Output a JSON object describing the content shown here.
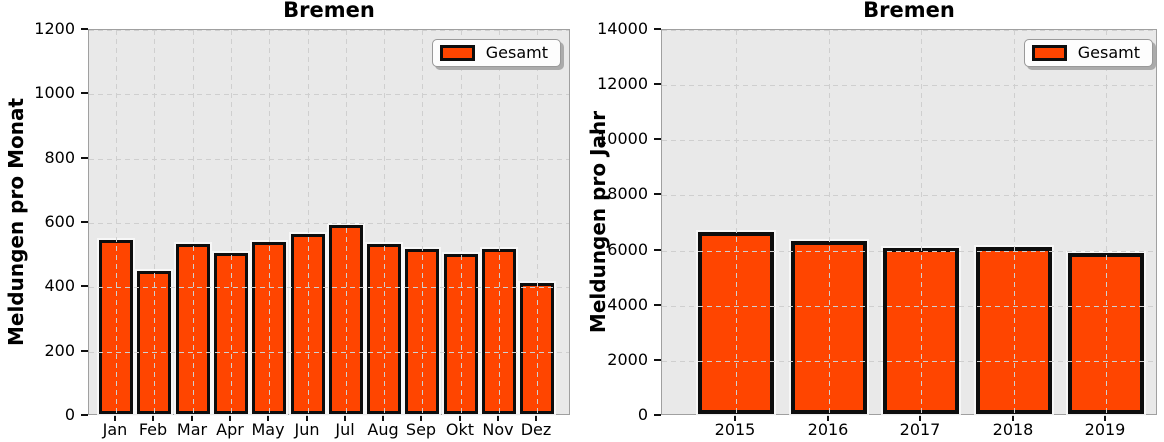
{
  "colors": {
    "bar_fill": "#FF4500",
    "bar_edge": "#0d0d0d",
    "plot_background": "#e9e9e9",
    "gridline": "#cfcfcf",
    "figure_background": "#ffffff"
  },
  "chart_data": [
    {
      "type": "bar",
      "title": "Bremen",
      "xlabel": "",
      "ylabel": "Meldungen pro Monat",
      "categories": [
        "Jan",
        "Feb",
        "Mar",
        "Apr",
        "May",
        "Jun",
        "Jul",
        "Aug",
        "Sep",
        "Okt",
        "Nov",
        "Dez"
      ],
      "values": [
        540,
        446,
        527,
        500,
        535,
        561,
        589,
        527,
        514,
        498,
        512,
        408
      ],
      "ylim": [
        0,
        1200
      ],
      "yticks": [
        0,
        200,
        400,
        600,
        800,
        1000,
        1200
      ],
      "grid": "dashed, both axes, drawn above bars",
      "legend": {
        "entries": [
          "Gesamt"
        ],
        "position": "upper right"
      }
    },
    {
      "type": "bar",
      "title": "Bremen",
      "xlabel": "",
      "ylabel": "Meldungen pro Jahr",
      "categories": [
        "2015",
        "2016",
        "2017",
        "2018",
        "2019"
      ],
      "values": [
        6590,
        6265,
        6010,
        6045,
        5850
      ],
      "ylim": [
        0,
        14000
      ],
      "yticks": [
        0,
        2000,
        4000,
        6000,
        8000,
        10000,
        12000,
        14000
      ],
      "grid": "dashed, both axes, drawn above bars",
      "legend": {
        "entries": [
          "Gesamt"
        ],
        "position": "upper right"
      }
    }
  ]
}
